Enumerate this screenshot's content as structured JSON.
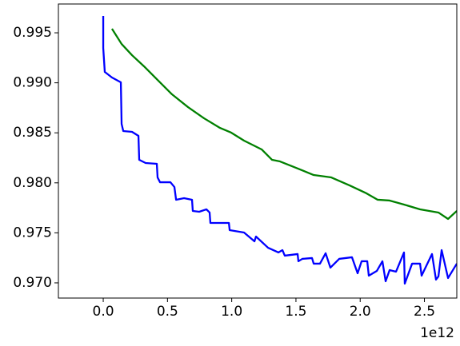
{
  "chart_data": {
    "type": "line",
    "x_offset": "1e12",
    "xlim": [
      -0.349,
      2.752
    ],
    "ylim": [
      0.96848,
      0.99788
    ],
    "xticks": [
      {
        "value": 0,
        "label": "0.0"
      },
      0.5,
      {
        "value": 1,
        "label": "1.0"
      },
      1.5,
      {
        "value": 2,
        "label": "2.0"
      },
      2.5
    ],
    "yticks": [
      {
        "value": 0.97,
        "label": "0.970"
      },
      0.975,
      {
        "value": 0.98,
        "label": "0.980"
      },
      0.985,
      {
        "value": 0.99,
        "label": "0.990"
      },
      0.995
    ],
    "grid": false,
    "series": [
      {
        "color": "#008000",
        "x": [
          0.068,
          0.143,
          0.224,
          0.318,
          0.423,
          0.535,
          0.66,
          0.785,
          0.909,
          0.996,
          1.096,
          1.233,
          1.314,
          1.376,
          1.501,
          1.638,
          1.775,
          1.918,
          2.049,
          2.136,
          2.229,
          2.341,
          2.466,
          2.609,
          2.684,
          2.752
        ],
        "values": [
          0.9954,
          0.99388,
          0.99276,
          0.99164,
          0.99029,
          0.98885,
          0.98757,
          0.98645,
          0.98549,
          0.98502,
          0.98422,
          0.98334,
          0.9823,
          0.98214,
          0.9815,
          0.98078,
          0.98054,
          0.97974,
          0.97895,
          0.97831,
          0.97823,
          0.97783,
          0.97735,
          0.97703,
          0.97639,
          0.97719
        ]
      },
      {
        "color": "#0000ff",
        "x": [
          0.0,
          0.0,
          0.012,
          0.068,
          0.137,
          0.143,
          0.156,
          0.224,
          0.274,
          0.28,
          0.33,
          0.417,
          0.423,
          0.442,
          0.523,
          0.554,
          0.567,
          0.629,
          0.691,
          0.697,
          0.747,
          0.803,
          0.828,
          0.834,
          0.978,
          0.984,
          1.096,
          1.177,
          1.189,
          1.283,
          1.364,
          1.395,
          1.413,
          1.513,
          1.519,
          1.55,
          1.625,
          1.638,
          1.687,
          1.731,
          1.768,
          1.837,
          1.936,
          1.98,
          2.011,
          2.055,
          2.067,
          2.13,
          2.173,
          2.198,
          2.229,
          2.279,
          2.341,
          2.347,
          2.404,
          2.466,
          2.478,
          2.559,
          2.59,
          2.609,
          2.634,
          2.684,
          2.752
        ],
        "values": [
          0.99668,
          0.99348,
          0.99109,
          0.99053,
          0.99005,
          0.98589,
          0.98518,
          0.9851,
          0.9847,
          0.9823,
          0.98198,
          0.9819,
          0.98054,
          0.98006,
          0.98006,
          0.97958,
          0.97831,
          0.97847,
          0.97831,
          0.97719,
          0.97711,
          0.97735,
          0.97703,
          0.97599,
          0.97599,
          0.97527,
          0.97503,
          0.97415,
          0.97463,
          0.97351,
          0.97304,
          0.97327,
          0.97272,
          0.97288,
          0.97216,
          0.9724,
          0.97248,
          0.97192,
          0.97192,
          0.97296,
          0.97152,
          0.9724,
          0.97256,
          0.97096,
          0.97216,
          0.97216,
          0.97072,
          0.9712,
          0.97216,
          0.97016,
          0.97128,
          0.97112,
          0.97304,
          0.96992,
          0.97192,
          0.97192,
          0.97072,
          0.97288,
          0.97032,
          0.97064,
          0.97327,
          0.97048,
          0.97192
        ]
      }
    ]
  }
}
